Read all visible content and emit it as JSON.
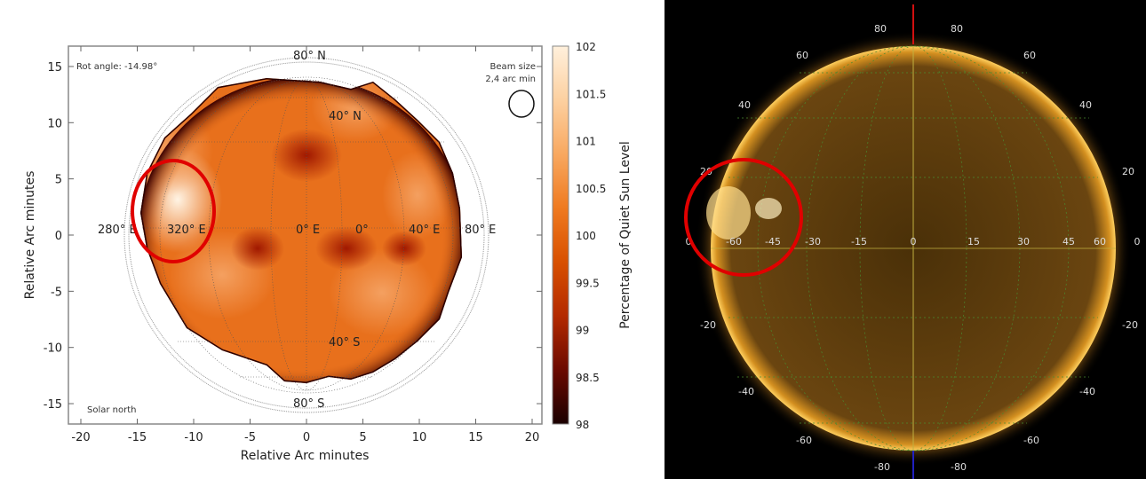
{
  "chart_data": [
    {
      "type": "heatmap",
      "title": "",
      "xlabel": "Relative Arc minutes",
      "ylabel": "Relative Arc minutes",
      "xlim": [
        -21,
        21
      ],
      "ylim": [
        -17,
        17
      ],
      "xticks": [
        -20,
        -15,
        -10,
        -5,
        0,
        5,
        10,
        15,
        20
      ],
      "yticks": [
        -15,
        -10,
        -5,
        0,
        5,
        10,
        15
      ],
      "grid": true,
      "colorbar": {
        "label": "Percentage of Quiet Sun Level",
        "range": [
          98,
          102
        ],
        "ticks": [
          "98",
          "98.5",
          "99",
          "99.5",
          "100",
          "100.5",
          "101",
          "101.5",
          "102"
        ],
        "colors": [
          "#1a0000",
          "#6b0a00",
          "#b32a00",
          "#d85000",
          "#ef7a20",
          "#f8a860",
          "#fcd0a0",
          "#fff0dc"
        ]
      },
      "annotations": {
        "rot_angle": "Rot angle: -14.98°",
        "beam_size": "Beam size",
        "beam_value": "2,4 arc min",
        "solar_north": "Solar north"
      },
      "grid_labels": [
        {
          "text": "80° N",
          "lon": 0,
          "lat": 80
        },
        {
          "text": "40° N",
          "lon": 20,
          "lat": 40
        },
        {
          "text": "280° E",
          "lon": 280,
          "lat": 0
        },
        {
          "text": "320° E",
          "lon": 320,
          "lat": 0
        },
        {
          "text": "0° E",
          "lon": 0,
          "lat": 0
        },
        {
          "text": "0°",
          "lon": 20,
          "lat": 0
        },
        {
          "text": "40° E",
          "lon": 40,
          "lat": 0
        },
        {
          "text": "80° E",
          "lon": 80,
          "lat": 0
        },
        {
          "text": "40° S",
          "lon": 10,
          "lat": -40
        },
        {
          "text": "80° S",
          "lon": 0,
          "lat": -80
        }
      ],
      "highlight": {
        "center": [
          -11.5,
          2
        ],
        "color": "#e00000"
      }
    },
    {
      "type": "image",
      "description_labels": {
        "top": [
          "80",
          "80"
        ],
        "upper": [
          "60",
          "60"
        ],
        "mid_upper": [
          "40",
          "40"
        ],
        "near_equator": [
          "20",
          "20"
        ],
        "equator": [
          "0",
          "-60",
          "-45",
          "-30",
          "-15",
          "0",
          "15",
          "30",
          "45",
          "60",
          "0"
        ],
        "below_equator": [
          "-20",
          "-20"
        ],
        "mid_lower": [
          "-40",
          "-40"
        ],
        "lower": [
          "-60",
          "-60"
        ],
        "bottom": [
          "-80",
          "-80"
        ]
      },
      "highlight_color": "#e00000"
    }
  ]
}
